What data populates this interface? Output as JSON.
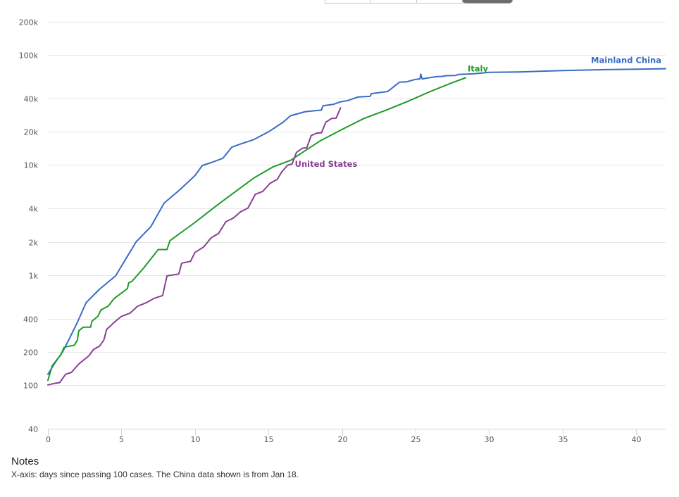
{
  "range_buttons": [
    {
      "label": "",
      "active": false
    },
    {
      "label": "",
      "active": false
    },
    {
      "label": "",
      "active": false
    },
    {
      "label": "",
      "active": true
    }
  ],
  "notes": {
    "title": "Notes",
    "text": "X-axis: days since passing 100 cases. The China data shown is from Jan 18."
  },
  "chart_data": {
    "type": "line",
    "title": "",
    "xlabel": "",
    "ylabel": "",
    "y_scale": "log",
    "xlim": [
      0,
      42
    ],
    "ylim": [
      40,
      200000
    ],
    "grid": true,
    "x_ticks": [
      0,
      5,
      10,
      15,
      20,
      25,
      30,
      35,
      40
    ],
    "y_ticks": [
      {
        "value": 200000,
        "label": "200k"
      },
      {
        "value": 100000,
        "label": "100k"
      },
      {
        "value": 40000,
        "label": "40k"
      },
      {
        "value": 20000,
        "label": "20k"
      },
      {
        "value": 10000,
        "label": "10k"
      },
      {
        "value": 4000,
        "label": "4k"
      },
      {
        "value": 2000,
        "label": "2k"
      },
      {
        "value": 1000,
        "label": "1k"
      },
      {
        "value": 400,
        "label": "400"
      },
      {
        "value": 200,
        "label": "200"
      },
      {
        "value": 100,
        "label": "100"
      },
      {
        "value": 40,
        "label": "40"
      }
    ],
    "series": [
      {
        "name": "Mainland China",
        "color": "#3a6cc6",
        "label_anchor": "end",
        "points": [
          [
            0,
            125
          ],
          [
            0.5,
            160
          ],
          [
            1,
            200
          ],
          [
            1.5,
            270
          ],
          [
            2,
            370
          ],
          [
            2.6,
            560
          ],
          [
            3.5,
            740
          ],
          [
            4.6,
            980
          ],
          [
            5.3,
            1400
          ],
          [
            6,
            2000
          ],
          [
            7,
            2750
          ],
          [
            7.9,
            4500
          ],
          [
            9,
            6000
          ],
          [
            10,
            8000
          ],
          [
            10.5,
            9900
          ],
          [
            11.1,
            10500
          ],
          [
            11.9,
            11500
          ],
          [
            12.5,
            14500
          ],
          [
            13.1,
            15500
          ],
          [
            14,
            17000
          ],
          [
            15,
            20000
          ],
          [
            16,
            24500
          ],
          [
            16.5,
            28000
          ],
          [
            17.5,
            30500
          ],
          [
            18.6,
            31500
          ],
          [
            18.7,
            34500
          ],
          [
            19.4,
            35500
          ],
          [
            19.9,
            37500
          ],
          [
            20.4,
            38500
          ],
          [
            21.1,
            41500
          ],
          [
            21.9,
            42000
          ],
          [
            22,
            44500
          ],
          [
            23.1,
            46500
          ],
          [
            23.9,
            56500
          ],
          [
            24.4,
            57000
          ],
          [
            25,
            60000
          ],
          [
            25.3,
            60500
          ],
          [
            25.35,
            67000
          ],
          [
            25.45,
            60500
          ],
          [
            25.9,
            62000
          ],
          [
            26.4,
            63500
          ],
          [
            26.8,
            63800
          ],
          [
            27.1,
            64800
          ],
          [
            27.7,
            65000
          ],
          [
            27.9,
            66500
          ],
          [
            28.5,
            67000
          ],
          [
            29,
            67500
          ],
          [
            30,
            69500
          ],
          [
            32,
            70000
          ],
          [
            35,
            72000
          ],
          [
            38,
            73500
          ],
          [
            41,
            74500
          ],
          [
            42,
            75000
          ]
        ]
      },
      {
        "name": "Italy",
        "color": "#1e9b2a",
        "label_anchor": "start",
        "points": [
          [
            0,
            110
          ],
          [
            0.3,
            150
          ],
          [
            0.9,
            190
          ],
          [
            1.1,
            220
          ],
          [
            1.8,
            230
          ],
          [
            2.0,
            255
          ],
          [
            2.1,
            310
          ],
          [
            2.4,
            335
          ],
          [
            2.9,
            335
          ],
          [
            3.0,
            380
          ],
          [
            3.4,
            420
          ],
          [
            3.6,
            480
          ],
          [
            4.1,
            520
          ],
          [
            4.5,
            610
          ],
          [
            5.4,
            750
          ],
          [
            5.5,
            850
          ],
          [
            5.7,
            870
          ],
          [
            6.5,
            1150
          ],
          [
            7.5,
            1700
          ],
          [
            8.1,
            1700
          ],
          [
            8.3,
            2050
          ],
          [
            10,
            3000
          ],
          [
            11.5,
            4300
          ],
          [
            12.5,
            5400
          ],
          [
            14,
            7600
          ],
          [
            15.3,
            9600
          ],
          [
            16.5,
            11000
          ],
          [
            17.5,
            13500
          ],
          [
            18.5,
            16500
          ],
          [
            20,
            21000
          ],
          [
            21.5,
            26500
          ],
          [
            23,
            31500
          ],
          [
            24.5,
            38000
          ],
          [
            26,
            46500
          ],
          [
            27.5,
            56000
          ],
          [
            28.4,
            62000
          ]
        ]
      },
      {
        "name": "United States",
        "color": "#8b3e95",
        "label_anchor": "start",
        "points": [
          [
            0,
            100
          ],
          [
            0.4,
            103
          ],
          [
            0.8,
            105
          ],
          [
            1.2,
            125
          ],
          [
            1.6,
            130
          ],
          [
            2.1,
            155
          ],
          [
            2.8,
            185
          ],
          [
            3.1,
            210
          ],
          [
            3.5,
            225
          ],
          [
            3.8,
            255
          ],
          [
            4.0,
            320
          ],
          [
            4.6,
            380
          ],
          [
            5.0,
            420
          ],
          [
            5.6,
            450
          ],
          [
            6.1,
            520
          ],
          [
            6.7,
            560
          ],
          [
            7.2,
            610
          ],
          [
            7.8,
            650
          ],
          [
            8.1,
            980
          ],
          [
            8.9,
            1020
          ],
          [
            9.1,
            1280
          ],
          [
            9.7,
            1330
          ],
          [
            10.0,
            1600
          ],
          [
            10.6,
            1800
          ],
          [
            11.1,
            2180
          ],
          [
            11.6,
            2380
          ],
          [
            12.1,
            3050
          ],
          [
            12.6,
            3280
          ],
          [
            13.1,
            3750
          ],
          [
            13.6,
            4050
          ],
          [
            14.1,
            5400
          ],
          [
            14.6,
            5750
          ],
          [
            15.1,
            6800
          ],
          [
            15.6,
            7400
          ],
          [
            15.9,
            8650
          ],
          [
            16.3,
            9950
          ],
          [
            16.6,
            10200
          ],
          [
            16.9,
            13000
          ],
          [
            17.3,
            14200
          ],
          [
            17.6,
            14300
          ],
          [
            17.9,
            18500
          ],
          [
            18.3,
            19500
          ],
          [
            18.6,
            19600
          ],
          [
            18.9,
            24500
          ],
          [
            19.3,
            26500
          ],
          [
            19.6,
            26700
          ],
          [
            19.9,
            33000
          ]
        ]
      }
    ]
  }
}
